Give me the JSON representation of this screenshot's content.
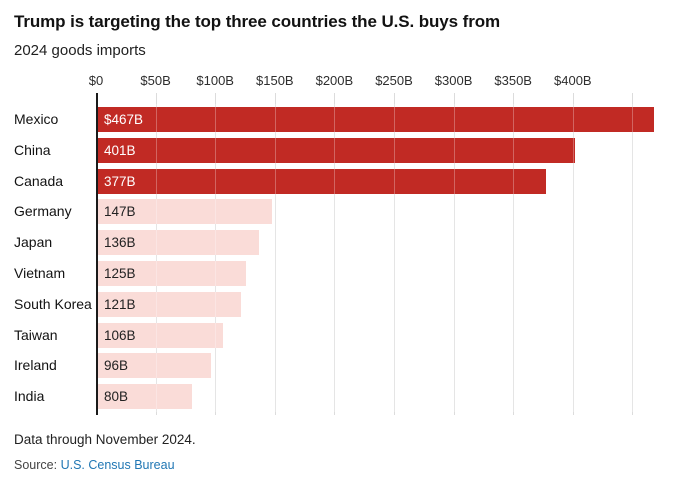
{
  "title": "Trump is targeting the top three countries the U.S. buys from",
  "subtitle": "2024 goods imports",
  "chart_data": {
    "type": "bar",
    "orientation": "horizontal",
    "title": "Trump is targeting the top three countries the U.S. buys from",
    "subtitle": "2024 goods imports",
    "unit": "billions of USD",
    "categories": [
      "Mexico",
      "China",
      "Canada",
      "Germany",
      "Japan",
      "Vietnam",
      "South Korea",
      "Taiwan",
      "Ireland",
      "India"
    ],
    "values": [
      467,
      401,
      377,
      147,
      136,
      125,
      121,
      106,
      96,
      80
    ],
    "value_labels": [
      "$467B",
      "401B",
      "377B",
      "147B",
      "136B",
      "125B",
      "121B",
      "106B",
      "96B",
      "80B"
    ],
    "highlight_count": 3,
    "x_ticks": [
      0,
      50,
      100,
      150,
      200,
      250,
      300,
      350,
      400,
      450
    ],
    "x_tick_labels": [
      "$0",
      "$50B",
      "$100B",
      "$150B",
      "$200B",
      "$250B",
      "$300B",
      "$350B",
      "$400B",
      ""
    ],
    "xlim": [
      0,
      470
    ],
    "grid": true,
    "legend": "none",
    "colors": {
      "highlight_bar": "#c12a24",
      "muted_bar": "#fadcd8",
      "highlight_text": "#ffffff",
      "muted_text": "#222222",
      "gridline": "#dcdcdc",
      "zero_axis": "#1a1a1a"
    }
  },
  "footer": {
    "note": "Data through November 2024.",
    "source_label": "Source:",
    "source_link_text": "U.S. Census Bureau",
    "source_link_color": "#2077b4"
  }
}
